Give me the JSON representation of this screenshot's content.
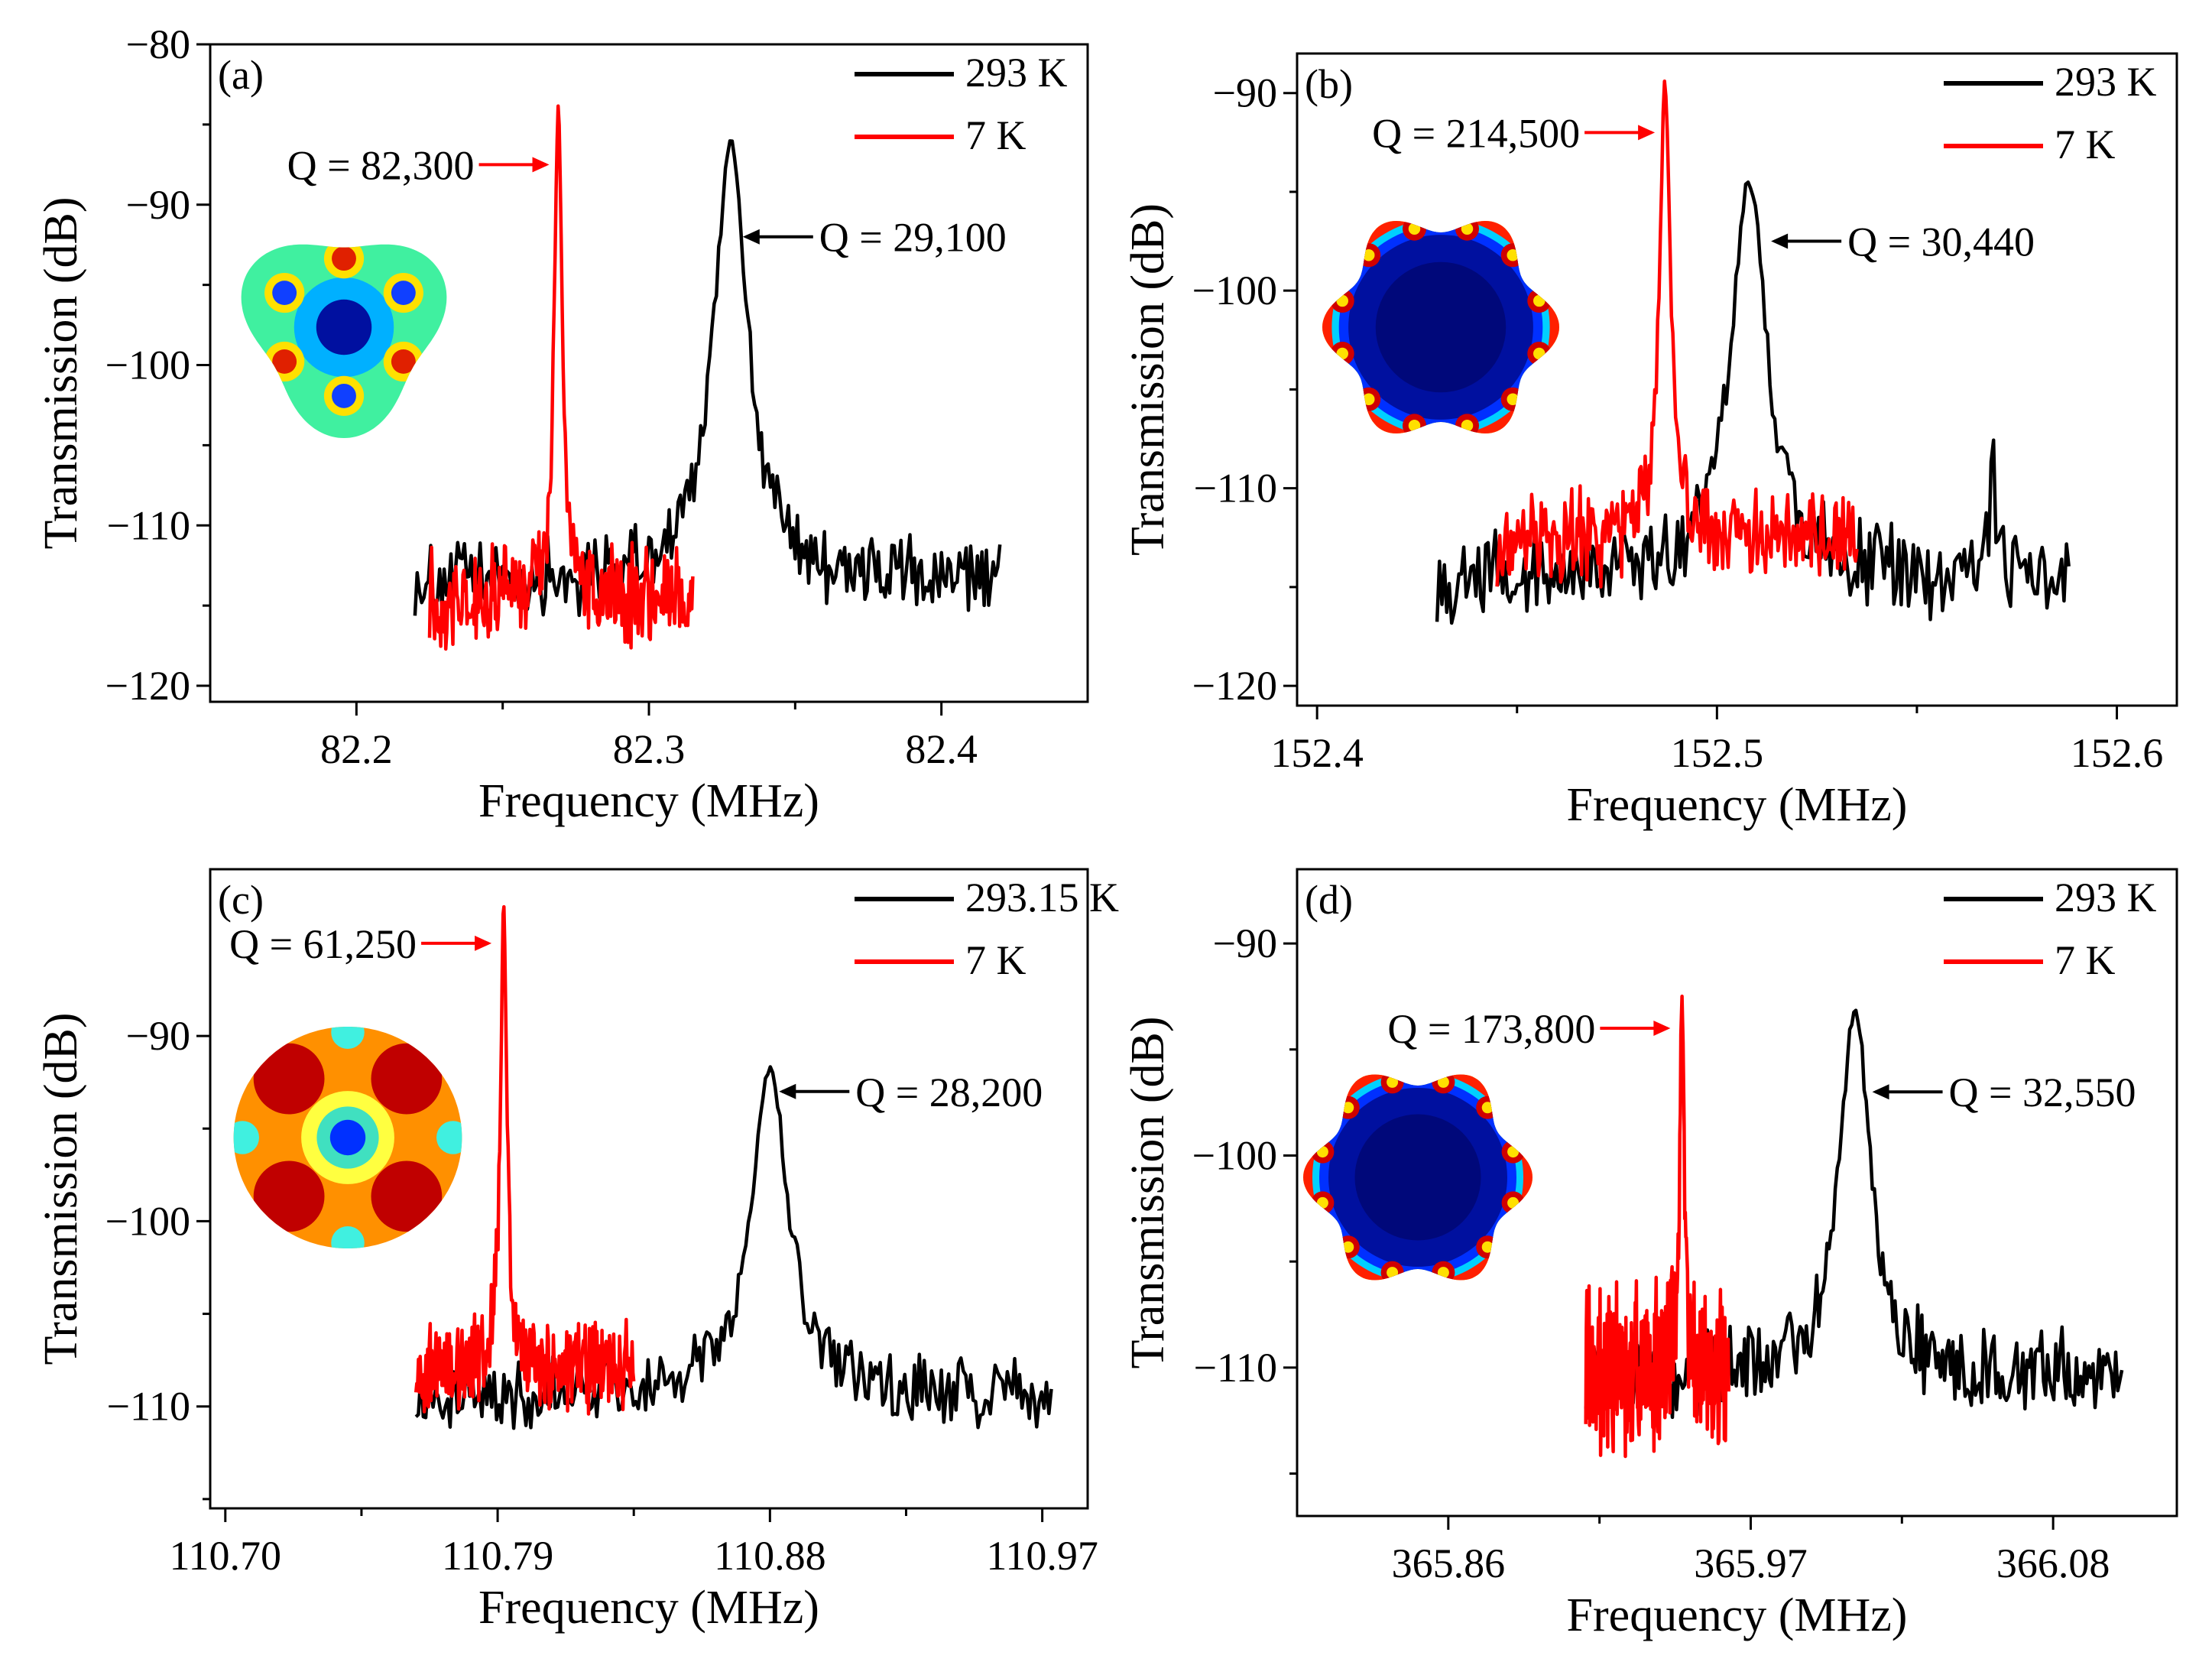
{
  "chart_data": [
    {
      "panel": "(a)",
      "type": "line",
      "xlabel": "Frequency (MHz)",
      "ylabel": "Transmission (dB)",
      "xlim": [
        82.15,
        82.45
      ],
      "ylim": [
        -121,
        -80
      ],
      "xticks": [
        82.2,
        82.3,
        82.4
      ],
      "xtick_labels": [
        "82.2",
        "82.3",
        "82.4"
      ],
      "yticks": [
        -80,
        -90,
        -100,
        -110,
        -120
      ],
      "ytick_labels": [
        "−80",
        "−90",
        "−100",
        "−110",
        "−120"
      ],
      "legend": {
        "position": "top-right",
        "entries": [
          "293 K",
          "7 K"
        ]
      },
      "series": [
        {
          "name": "293 K",
          "color": "#000000",
          "x_range": [
            82.22,
            82.42
          ],
          "peak_x": 82.328,
          "peak_y": -86,
          "baseline": -113.5,
          "noise": 2.0,
          "tail": "left-shoulder"
        },
        {
          "name": "7 K",
          "color": "#ff0000",
          "x_range": [
            82.225,
            82.315
          ],
          "peak_x": 82.269,
          "peak_y": -84,
          "baseline": -114.5,
          "noise": 2.4
        }
      ],
      "annotations": [
        {
          "text": "Q = 82,300",
          "color": "#ff0000",
          "arrow": "right",
          "target": [
            82.268,
            -87.5
          ]
        },
        {
          "text": "Q = 29,100",
          "color": "#000000",
          "arrow": "left",
          "target": [
            82.33,
            -92
          ]
        }
      ],
      "inset": {
        "shape": "triangular-rounded",
        "lobes": 3,
        "mode": "mode-pattern-3"
      }
    },
    {
      "panel": "(b)",
      "type": "line",
      "xlabel": "Frequency (MHz)",
      "ylabel": "Transmission (dB)",
      "xlim": [
        152.395,
        152.615
      ],
      "ylim": [
        -121,
        -88
      ],
      "xticks": [
        152.4,
        152.5,
        152.6
      ],
      "xtick_labels": [
        "152.4",
        "152.5",
        "152.6"
      ],
      "yticks": [
        -90,
        -100,
        -110,
        -120
      ],
      "ytick_labels": [
        "−90",
        "−100",
        "−110",
        "−120"
      ],
      "legend": {
        "position": "top-right",
        "entries": [
          "293 K",
          "7 K"
        ]
      },
      "series": [
        {
          "name": "293 K",
          "color": "#000000",
          "x_range": [
            152.43,
            152.588
          ],
          "peak_x": 152.508,
          "peak_y": -94.5,
          "baseline": -114.5,
          "noise": 1.8,
          "extra_peak": [
            152.569,
            -109
          ]
        },
        {
          "name": "7 K",
          "color": "#ff0000",
          "x_range": [
            152.445,
            152.535
          ],
          "peak_x": 152.487,
          "peak_y": -89.5,
          "baseline": -112.5,
          "noise": 2.0
        }
      ],
      "annotations": [
        {
          "text": "Q = 214,500",
          "color": "#ff0000",
          "arrow": "right",
          "target": [
            152.486,
            -92
          ]
        },
        {
          "text": "Q = 30,440",
          "color": "#000000",
          "arrow": "left",
          "target": [
            152.512,
            -97.5
          ]
        }
      ],
      "inset": {
        "shape": "flower",
        "lobes": 6,
        "mode": "whispering-gallery"
      }
    },
    {
      "panel": "(c)",
      "type": "line",
      "xlabel": "Frequency (MHz)",
      "ylabel": "Transmission (dB)",
      "xlim": [
        110.695,
        110.985
      ],
      "ylim": [
        -115.5,
        -81
      ],
      "xticks": [
        110.7,
        110.79,
        110.88,
        110.97
      ],
      "xtick_labels": [
        "110.70",
        "110.79",
        "110.88",
        "110.97"
      ],
      "yticks": [
        -90,
        -100,
        -110
      ],
      "ytick_labels": [
        "−90",
        "−100",
        "−110"
      ],
      "legend": {
        "position": "top-right",
        "entries": [
          "293.15 K",
          "7 K"
        ]
      },
      "series": [
        {
          "name": "293.15 K",
          "color": "#000000",
          "x_range": [
            110.763,
            110.973
          ],
          "peak_x": 110.88,
          "peak_y": -91.8,
          "baseline": -109.5,
          "noise": 1.6
        },
        {
          "name": "7 K",
          "color": "#ff0000",
          "x_range": [
            110.763,
            110.835
          ],
          "peak_x": 110.792,
          "peak_y": -83,
          "baseline": -108,
          "noise": 2.0
        }
      ],
      "annotations": [
        {
          "text": "Q = 61,250",
          "color": "#ff0000",
          "arrow": "right",
          "target": [
            110.79,
            -85
          ]
        },
        {
          "text": "Q = 28,200",
          "color": "#000000",
          "arrow": "left",
          "target": [
            110.881,
            -93
          ]
        }
      ],
      "inset": {
        "shape": "oval",
        "lobes": 1,
        "mode": "mode-pattern-2"
      }
    },
    {
      "panel": "(d)",
      "type": "line",
      "xlabel": "Frequency (MHz)",
      "ylabel": "Transmission (dB)",
      "xlim": [
        365.805,
        366.125
      ],
      "ylim": [
        -117,
        -86.5
      ],
      "xticks": [
        365.86,
        365.97,
        366.08
      ],
      "xtick_labels": [
        "365.86",
        "365.97",
        "366.08"
      ],
      "yticks": [
        -90,
        -100,
        -110
      ],
      "ytick_labels": [
        "−90",
        "−100",
        "−110"
      ],
      "legend": {
        "position": "top-right",
        "entries": [
          "293 K",
          "7 K"
        ]
      },
      "series": [
        {
          "name": "293 K",
          "color": "#000000",
          "x_range": [
            365.91,
            366.105
          ],
          "peak_x": 366.008,
          "peak_y": -93,
          "baseline": -110.5,
          "noise": 1.7
        },
        {
          "name": "7 K",
          "color": "#ff0000",
          "x_range": [
            365.91,
            365.962
          ],
          "peak_x": 365.945,
          "peak_y": -92.5,
          "baseline": -110,
          "noise": 3.2
        }
      ],
      "annotations": [
        {
          "text": "Q = 173,800",
          "color": "#ff0000",
          "arrow": "right",
          "target": [
            365.943,
            -94
          ]
        },
        {
          "text": "Q = 32,550",
          "color": "#000000",
          "arrow": "left",
          "target": [
            366.012,
            -97
          ]
        }
      ],
      "inset": {
        "shape": "flower",
        "lobes": 6,
        "mode": "whispering-gallery"
      }
    }
  ]
}
